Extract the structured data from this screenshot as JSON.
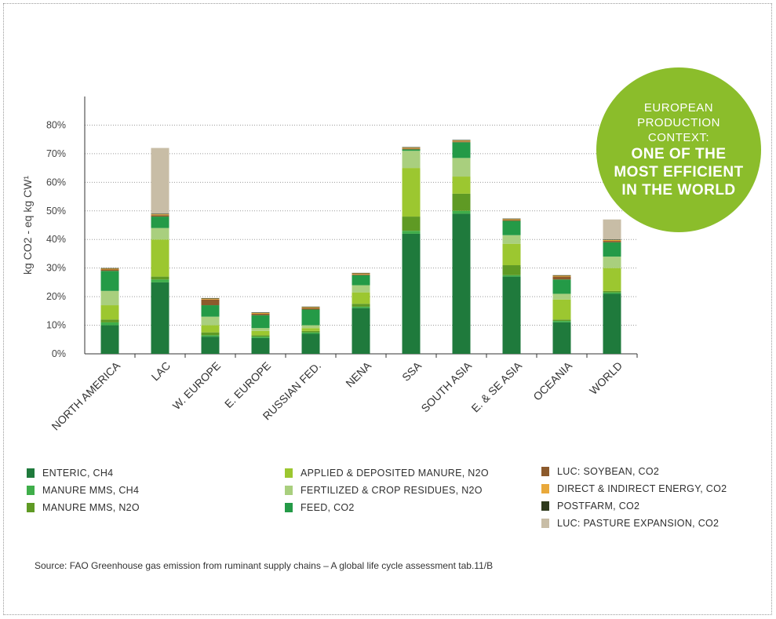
{
  "chart_data": {
    "type": "bar",
    "stacked": true,
    "ylabel": "kg CO2 - eq kg CW¹",
    "ylim": [
      0,
      90
    ],
    "yticks": [
      0,
      10,
      20,
      30,
      40,
      50,
      60,
      70,
      80
    ],
    "ytick_labels": [
      "0%",
      "10%",
      "20%",
      "30%",
      "40%",
      "50%",
      "60%",
      "70%",
      "80%"
    ],
    "grid": "horizontal dotted",
    "categories": [
      "NORTH AMERICA",
      "LAC",
      "W. EUROPE",
      "E. EUROPE",
      "RUSSIAN FED.",
      "NENA",
      "SSA",
      "SOUTH ASIA",
      "E. & SE ASIA",
      "OCEANIA",
      "WORLD"
    ],
    "series": [
      {
        "name": "ENTERIC, CH4",
        "color": "#1f7a3c",
        "values": [
          10,
          25,
          6,
          5.5,
          7,
          16,
          42,
          49,
          27,
          11,
          21
        ]
      },
      {
        "name": "MANURE MMS, CH4",
        "color": "#3fae4a",
        "values": [
          1,
          1,
          0.5,
          0.5,
          0.5,
          0.5,
          1,
          1,
          0.5,
          0.5,
          0.5
        ]
      },
      {
        "name": "MANURE MMS, N2O",
        "color": "#5f9a24",
        "values": [
          1,
          1,
          1,
          0.5,
          0.5,
          1,
          5,
          6,
          3.5,
          0.5,
          0.5
        ]
      },
      {
        "name": "APPLIED & DEPOSITED MANURE, N2O",
        "color": "#9cc730",
        "values": [
          5,
          13,
          2.5,
          1.5,
          1,
          4,
          17,
          6,
          7.5,
          7,
          8
        ]
      },
      {
        "name": "FERTILIZED & CROP RESIDUES, N2O",
        "color": "#a9cf7e",
        "values": [
          5,
          4,
          3,
          1,
          1,
          2.5,
          6,
          6.5,
          3,
          2,
          4
        ]
      },
      {
        "name": "FEED, CO2",
        "color": "#249a47",
        "values": [
          7,
          4,
          4,
          4.5,
          5.5,
          3.5,
          0.5,
          5.5,
          5,
          5,
          5
        ]
      },
      {
        "name": "LUC: SOYBEAN, CO2",
        "color": "#8c5a2c",
        "values": [
          0.5,
          0.5,
          2,
          0.5,
          0.5,
          0.3,
          0.3,
          0.3,
          0.3,
          1,
          0.5
        ]
      },
      {
        "name": "DIRECT & INDIRECT ENERGY, CO2",
        "color": "#e9a93b",
        "values": [
          0.3,
          0.3,
          0.3,
          0.3,
          0.3,
          0.3,
          0.3,
          0.3,
          0.3,
          0.3,
          0.3
        ]
      },
      {
        "name": "POSTFARM, CO2",
        "color": "#2e3a1c",
        "values": [
          0.2,
          0.2,
          0.2,
          0.2,
          0.2,
          0.2,
          0.2,
          0.2,
          0.2,
          0.2,
          0.2
        ]
      },
      {
        "name": "LUC: PASTURE EXPANSION, CO2",
        "color": "#c8bda6",
        "values": [
          0,
          23,
          0,
          0,
          0,
          0,
          0,
          0,
          0,
          0,
          7
        ]
      }
    ],
    "source": "Source: FAO Greenhouse gas emission from ruminant supply chains – A global life cycle assessment tab.11/B"
  },
  "badge": {
    "line1": "EUROPEAN",
    "line2": "PRODUCTION",
    "line3": "CONTEXT:",
    "line4": "ONE OF THE",
    "line5": "MOST EFFICIENT",
    "line6": "IN THE WORLD",
    "color": "#8bbd2b"
  }
}
